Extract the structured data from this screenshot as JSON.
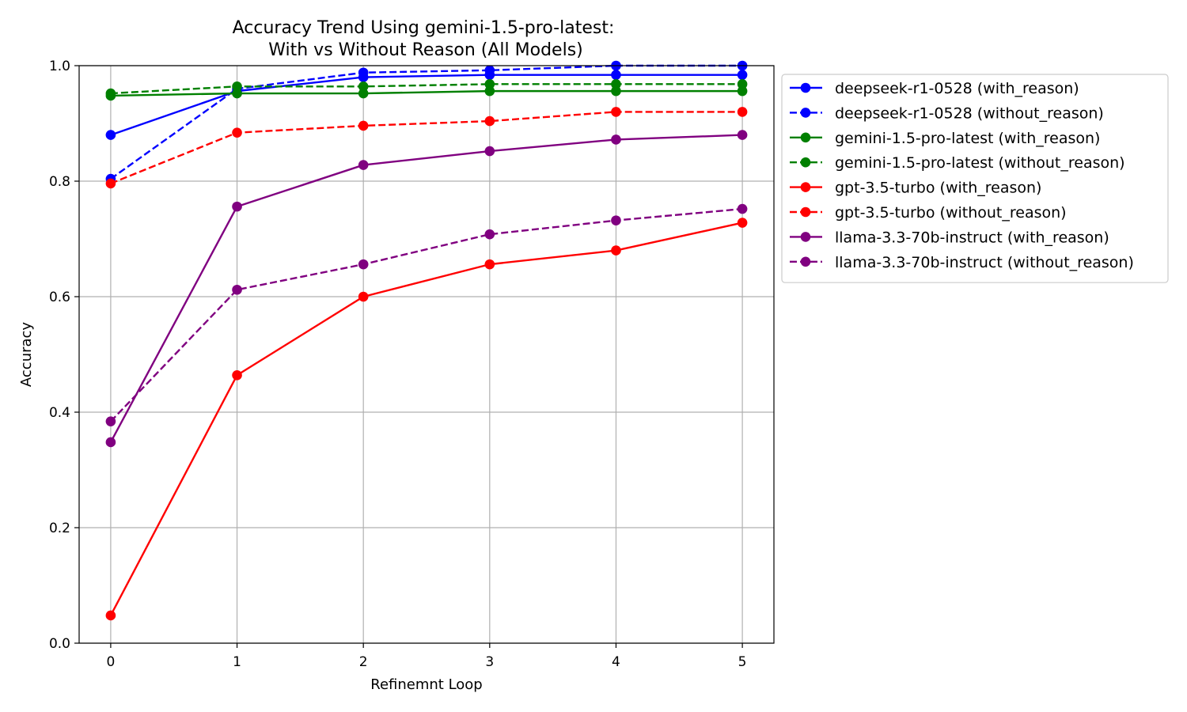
{
  "chart_data": {
    "type": "line",
    "title_lines": [
      "Accuracy Trend Using gemini-1.5-pro-latest:",
      "With vs Without Reason (All Models)"
    ],
    "xlabel": "Refinemnt Loop",
    "ylabel": "Accuracy",
    "x": [
      0,
      1,
      2,
      3,
      4,
      5
    ],
    "xlim": [
      -0.25,
      5.25
    ],
    "ylim": [
      0.0,
      1.0
    ],
    "xticks": [
      "0",
      "1",
      "2",
      "3",
      "4",
      "5"
    ],
    "yticks": [
      "0.0",
      "0.2",
      "0.4",
      "0.6",
      "0.8",
      "1.0"
    ],
    "grid": true,
    "legend_position": "outside-right-top",
    "series": [
      {
        "name": "deepseek-r1-0528 (with_reason)",
        "color": "#0000ff",
        "style": "solid",
        "values": [
          0.88,
          0.956,
          0.98,
          0.984,
          0.984,
          0.984
        ]
      },
      {
        "name": "deepseek-r1-0528 (without_reason)",
        "color": "#0000ff",
        "style": "dashed",
        "values": [
          0.804,
          0.96,
          0.988,
          0.992,
          1.0,
          1.0
        ]
      },
      {
        "name": "gemini-1.5-pro-latest (with_reason)",
        "color": "#008000",
        "style": "solid",
        "values": [
          0.948,
          0.952,
          0.952,
          0.956,
          0.956,
          0.956
        ]
      },
      {
        "name": "gemini-1.5-pro-latest (without_reason)",
        "color": "#008000",
        "style": "dashed",
        "values": [
          0.952,
          0.964,
          0.964,
          0.968,
          0.968,
          0.968
        ]
      },
      {
        "name": "gpt-3.5-turbo (with_reason)",
        "color": "#ff0000",
        "style": "solid",
        "values": [
          0.048,
          0.464,
          0.6,
          0.656,
          0.68,
          0.728
        ]
      },
      {
        "name": "gpt-3.5-turbo (without_reason)",
        "color": "#ff0000",
        "style": "dashed",
        "values": [
          0.796,
          0.884,
          0.896,
          0.904,
          0.92,
          0.92
        ]
      },
      {
        "name": "llama-3.3-70b-instruct (with_reason)",
        "color": "#800080",
        "style": "solid",
        "values": [
          0.348,
          0.756,
          0.828,
          0.852,
          0.872,
          0.88
        ]
      },
      {
        "name": "llama-3.3-70b-instruct (without_reason)",
        "color": "#800080",
        "style": "dashed",
        "values": [
          0.384,
          0.612,
          0.656,
          0.708,
          0.732,
          0.752
        ]
      }
    ]
  }
}
